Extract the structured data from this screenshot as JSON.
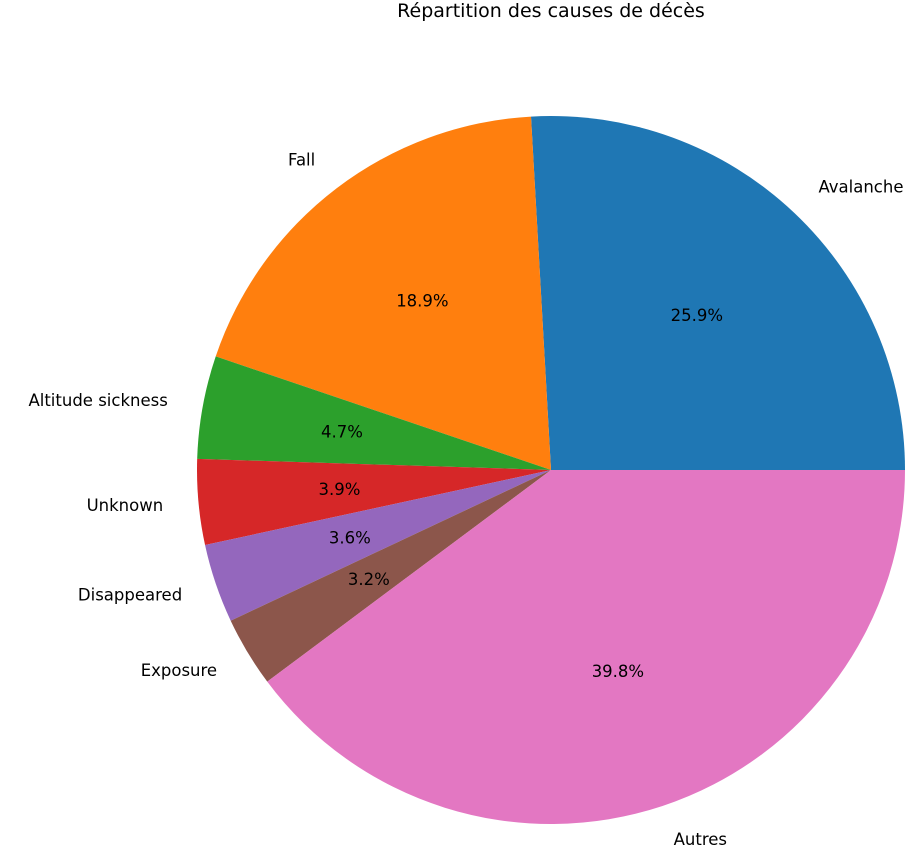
{
  "chart_data": {
    "type": "pie",
    "title": "Répartition des causes de décès",
    "start_angle_deg": 0,
    "direction": "counterclockwise",
    "slices": [
      {
        "label": "Avalanche",
        "value": 25.9,
        "pct_label": "25.9%",
        "color": "#1f77b4"
      },
      {
        "label": "Fall",
        "value": 18.9,
        "pct_label": "18.9%",
        "color": "#ff7f0e"
      },
      {
        "label": "Altitude sickness",
        "value": 4.7,
        "pct_label": "4.7%",
        "color": "#2ca02c"
      },
      {
        "label": "Unknown",
        "value": 3.9,
        "pct_label": "3.9%",
        "color": "#d62728"
      },
      {
        "label": "Disappeared",
        "value": 3.6,
        "pct_label": "3.6%",
        "color": "#9467bd"
      },
      {
        "label": "Exposure",
        "value": 3.2,
        "pct_label": "3.2%",
        "color": "#8c564b"
      },
      {
        "label": "Autres",
        "value": 39.8,
        "pct_label": "39.8%",
        "color": "#e377c2"
      }
    ]
  }
}
